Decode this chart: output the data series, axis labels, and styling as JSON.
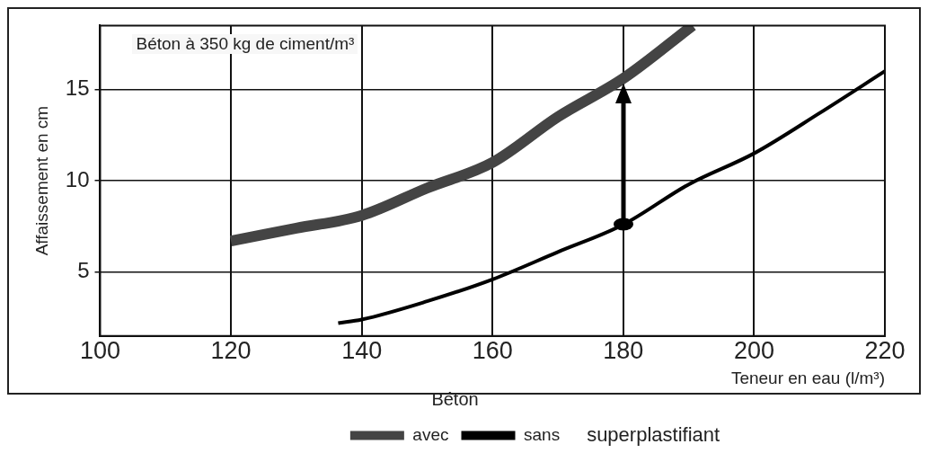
{
  "chart_data": {
    "type": "line",
    "title": "Béton à 350 kg de ciment/m³",
    "xlabel": "Teneur en eau (l/m³)",
    "ylabel": "Affaissement en cm",
    "legend_title": "Béton",
    "annotations": [
      "superplastifiant"
    ],
    "xlim": [
      100,
      220
    ],
    "xticks": [
      100,
      120,
      140,
      160,
      180,
      200,
      220
    ],
    "ylim": [
      1.5,
      18.5
    ],
    "yticks": [
      5,
      10,
      15
    ],
    "grid": true,
    "legend": "bottom",
    "marker": "none",
    "line_style": "solid",
    "series": [
      {
        "name": "avec",
        "color": "#444444",
        "x": [
          120,
          130,
          140,
          150,
          160,
          170,
          180,
          190.6
        ],
        "values": [
          6.7,
          7.4,
          8.1,
          9.6,
          11.0,
          13.5,
          15.6,
          18.5
        ]
      },
      {
        "name": "sans",
        "color": "#000000",
        "x": [
          136.4,
          140,
          150,
          160,
          170,
          180,
          190,
          200,
          210,
          220
        ],
        "values": [
          2.2,
          2.4,
          3.4,
          4.6,
          6.1,
          7.6,
          9.8,
          11.5,
          13.7,
          16.0
        ]
      }
    ]
  }
}
